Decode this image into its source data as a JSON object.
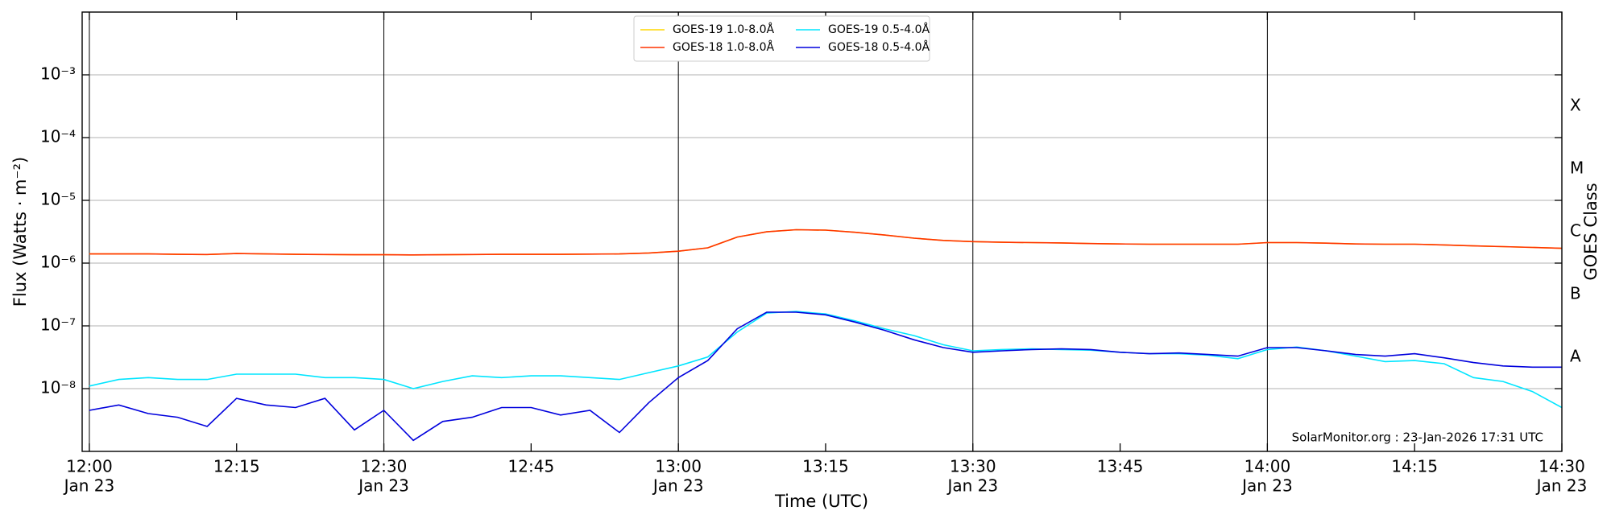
{
  "chart_data": {
    "type": "line",
    "ylabel": "Flux (Watts · m⁻²)",
    "xlabel": "Time (UTC)",
    "y2label": "GOES Class",
    "annotation": "SolarMonitor.org : 23-Jan-2026 17:31 UTC",
    "log_scale": true,
    "grid": true,
    "legend": "upper center",
    "x": [
      "12:00",
      "12:03",
      "12:06",
      "12:09",
      "12:12",
      "12:15",
      "12:18",
      "12:21",
      "12:24",
      "12:27",
      "12:30",
      "12:33",
      "12:36",
      "12:39",
      "12:42",
      "12:45",
      "12:48",
      "12:51",
      "12:54",
      "12:57",
      "13:00",
      "13:03",
      "13:06",
      "13:09",
      "13:12",
      "13:15",
      "13:18",
      "13:21",
      "13:24",
      "13:27",
      "13:30",
      "13:33",
      "13:36",
      "13:39",
      "13:42",
      "13:45",
      "13:48",
      "13:51",
      "13:54",
      "13:57",
      "14:00",
      "14:03",
      "14:06",
      "14:09",
      "14:12",
      "14:15",
      "14:18",
      "14:21",
      "14:24",
      "14:27",
      "14:30"
    ],
    "xlim": [
      "11:59:16",
      "14:30"
    ],
    "xticks": [
      {
        "value": "12:00",
        "label": "12:00",
        "sublabel": "Jan 23"
      },
      {
        "value": "12:15",
        "label": "12:15"
      },
      {
        "value": "12:30",
        "label": "12:30",
        "sublabel": "Jan 23"
      },
      {
        "value": "12:45",
        "label": "12:45"
      },
      {
        "value": "13:00",
        "label": "13:00",
        "sublabel": "Jan 23"
      },
      {
        "value": "13:15",
        "label": "13:15"
      },
      {
        "value": "13:30",
        "label": "13:30",
        "sublabel": "Jan 23"
      },
      {
        "value": "13:45",
        "label": "13:45"
      },
      {
        "value": "14:00",
        "label": "14:00",
        "sublabel": "Jan 23"
      },
      {
        "value": "14:15",
        "label": "14:15"
      },
      {
        "value": "14:30",
        "label": "14:30",
        "sublabel": "Jan 23"
      }
    ],
    "ylim": [
      1e-09,
      0.01
    ],
    "yticks": [
      {
        "value": 1e-08,
        "label": "10⁻⁸"
      },
      {
        "value": 1e-07,
        "label": "10⁻⁷"
      },
      {
        "value": 1e-06,
        "label": "10⁻⁶"
      },
      {
        "value": 1e-05,
        "label": "10⁻⁵"
      },
      {
        "value": 0.0001,
        "label": "10⁻⁴"
      },
      {
        "value": 0.001,
        "label": "10⁻³"
      }
    ],
    "y2lim": [
      1e-09,
      0.01
    ],
    "y2ticks": [
      {
        "value": 3.16e-08,
        "label": "A"
      },
      {
        "value": 3.16e-07,
        "label": "B"
      },
      {
        "value": 3.16e-06,
        "label": "C"
      },
      {
        "value": 3.16e-05,
        "label": "M"
      },
      {
        "value": 0.000316,
        "label": "X"
      }
    ],
    "series": [
      {
        "name": "GOES-19 1.0-8.0Å",
        "color": "#ffd700",
        "values": [
          1.4e-06,
          1.4e-06,
          1.4e-06,
          1.38e-06,
          1.37e-06,
          1.42e-06,
          1.4e-06,
          1.38e-06,
          1.37e-06,
          1.36e-06,
          1.36e-06,
          1.35e-06,
          1.36e-06,
          1.37e-06,
          1.38e-06,
          1.38e-06,
          1.38e-06,
          1.39e-06,
          1.4e-06,
          1.45e-06,
          1.55e-06,
          1.75e-06,
          2.6e-06,
          3.15e-06,
          3.4e-06,
          3.35e-06,
          3.1e-06,
          2.8e-06,
          2.5e-06,
          2.3e-06,
          2.2e-06,
          2.15e-06,
          2.12e-06,
          2.1e-06,
          2.05e-06,
          2.02e-06,
          2e-06,
          2e-06,
          2e-06,
          2e-06,
          2.12e-06,
          2.12e-06,
          2.08e-06,
          2.02e-06,
          2e-06,
          2e-06,
          1.95e-06,
          1.88e-06,
          1.83e-06,
          1.78e-06,
          1.72e-06
        ]
      },
      {
        "name": "GOES-18 1.0-8.0Å",
        "color": "#ff3300",
        "values": [
          1.4e-06,
          1.4e-06,
          1.4e-06,
          1.38e-06,
          1.37e-06,
          1.42e-06,
          1.4e-06,
          1.38e-06,
          1.37e-06,
          1.36e-06,
          1.36e-06,
          1.35e-06,
          1.36e-06,
          1.37e-06,
          1.38e-06,
          1.38e-06,
          1.38e-06,
          1.39e-06,
          1.4e-06,
          1.45e-06,
          1.55e-06,
          1.75e-06,
          2.6e-06,
          3.15e-06,
          3.4e-06,
          3.35e-06,
          3.1e-06,
          2.8e-06,
          2.5e-06,
          2.3e-06,
          2.2e-06,
          2.15e-06,
          2.12e-06,
          2.1e-06,
          2.05e-06,
          2.02e-06,
          2e-06,
          2e-06,
          2e-06,
          2e-06,
          2.12e-06,
          2.12e-06,
          2.08e-06,
          2.02e-06,
          2e-06,
          2e-06,
          1.95e-06,
          1.88e-06,
          1.83e-06,
          1.78e-06,
          1.72e-06
        ]
      },
      {
        "name": "GOES-19 0.5-4.0Å",
        "color": "#00e5ff",
        "values": [
          1.1e-08,
          1.4e-08,
          1.5e-08,
          1.4e-08,
          1.4e-08,
          1.7e-08,
          1.7e-08,
          1.7e-08,
          1.5e-08,
          1.5e-08,
          1.4e-08,
          1e-08,
          1.3e-08,
          1.6e-08,
          1.5e-08,
          1.6e-08,
          1.6e-08,
          1.5e-08,
          1.4e-08,
          1.8e-08,
          2.3e-08,
          3.2e-08,
          8e-08,
          1.6e-07,
          1.7e-07,
          1.55e-07,
          1.2e-07,
          9e-08,
          7e-08,
          5e-08,
          4e-08,
          4.2e-08,
          4.3e-08,
          4.2e-08,
          4.1e-08,
          3.8e-08,
          3.6e-08,
          3.6e-08,
          3.4e-08,
          3e-08,
          4.2e-08,
          4.6e-08,
          4e-08,
          3.3e-08,
          2.7e-08,
          2.8e-08,
          2.5e-08,
          1.5e-08,
          1.3e-08,
          9e-09,
          5e-09
        ]
      },
      {
        "name": "GOES-18 0.5-4.0Å",
        "color": "#0000dd",
        "values": [
          4.5e-09,
          5.5e-09,
          4e-09,
          3.5e-09,
          2.5e-09,
          7e-09,
          5.5e-09,
          5e-09,
          7e-09,
          2.2e-09,
          4.5e-09,
          1.5e-09,
          3e-09,
          3.5e-09,
          5e-09,
          5e-09,
          3.8e-09,
          4.5e-09,
          2e-09,
          6e-09,
          1.5e-08,
          2.8e-08,
          9e-08,
          1.65e-07,
          1.65e-07,
          1.5e-07,
          1.15e-07,
          8.5e-08,
          6e-08,
          4.5e-08,
          3.8e-08,
          4e-08,
          4.2e-08,
          4.3e-08,
          4.2e-08,
          3.8e-08,
          3.6e-08,
          3.7e-08,
          3.5e-08,
          3.3e-08,
          4.5e-08,
          4.5e-08,
          4e-08,
          3.5e-08,
          3.3e-08,
          3.6e-08,
          3.1e-08,
          2.6e-08,
          2.3e-08,
          2.2e-08,
          2.2e-08
        ]
      }
    ]
  }
}
